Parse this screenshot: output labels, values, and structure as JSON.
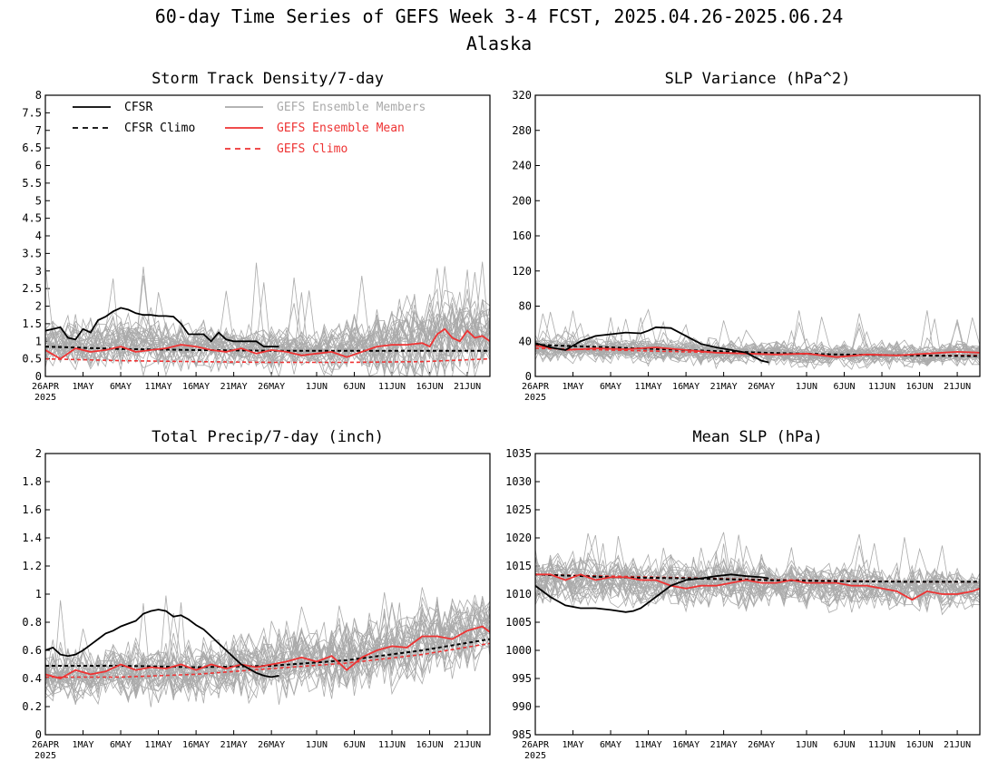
{
  "title_line1": "60-day Time Series of GEFS Week 3-4 FCST, 2025.04.26-2025.06.24",
  "title_line2": "Alaska",
  "x_tick_labels": [
    "26APR",
    "1MAY",
    "6MAY",
    "11MAY",
    "16MAY",
    "21MAY",
    "26MAY",
    "1JUN",
    "6JUN",
    "11JUN",
    "16JUN",
    "21JUN"
  ],
  "x_year_label": "2025",
  "legend": {
    "cfsr": "CFSR",
    "cfsr_climo": "CFSR Climo",
    "members": "GEFS Ensemble Members",
    "ens_mean": "GEFS Ensemble Mean",
    "gefs_climo": "GEFS Climo"
  },
  "colors": {
    "cfsr": "#000000",
    "members": "#aaaaaa",
    "ens_mean": "#ee3333",
    "gefs_climo": "#ee3333"
  },
  "chart_data": [
    {
      "type": "line",
      "title": "Storm Track Density/7-day",
      "ylim": [
        0,
        8
      ],
      "yticks": [
        "0",
        "0.5",
        "1",
        "1.5",
        "2",
        "2.5",
        "3",
        "3.5",
        "4",
        "4.5",
        "5",
        "5.5",
        "6",
        "6.5",
        "7",
        "7.5",
        "8"
      ],
      "x_days": 60,
      "show_legend": true,
      "series": [
        {
          "name": "CFSR",
          "x": [
            0,
            1,
            2,
            3,
            4,
            5,
            6,
            7,
            8,
            9,
            10,
            11,
            12,
            13,
            14,
            15,
            16,
            17,
            18,
            19,
            20,
            21,
            22,
            23,
            24,
            25,
            26,
            27,
            28,
            29,
            30,
            31
          ],
          "values": [
            1.3,
            1.35,
            1.4,
            1.1,
            1.05,
            1.35,
            1.25,
            1.6,
            1.7,
            1.85,
            1.95,
            1.9,
            1.8,
            1.75,
            1.75,
            1.72,
            1.72,
            1.7,
            1.5,
            1.2,
            1.2,
            1.2,
            1.0,
            1.25,
            1.05,
            1.0,
            1.0,
            1.0,
            1.0,
            0.85,
            0.85,
            0.85
          ]
        },
        {
          "name": "CFSR Climo",
          "x": [
            0,
            10,
            20,
            30,
            40,
            50,
            59
          ],
          "values": [
            0.85,
            0.78,
            0.75,
            0.73,
            0.73,
            0.73,
            0.73
          ]
        },
        {
          "name": "GEFS Ensemble Mean",
          "x": [
            0,
            2,
            4,
            6,
            8,
            10,
            12,
            14,
            16,
            18,
            20,
            22,
            24,
            26,
            28,
            30,
            32,
            34,
            36,
            38,
            40,
            42,
            44,
            46,
            48,
            50,
            51,
            52,
            53,
            54,
            55,
            56,
            57,
            58,
            59
          ],
          "values": [
            0.75,
            0.5,
            0.8,
            0.7,
            0.75,
            0.85,
            0.7,
            0.75,
            0.8,
            0.9,
            0.85,
            0.75,
            0.7,
            0.8,
            0.65,
            0.75,
            0.7,
            0.6,
            0.65,
            0.7,
            0.55,
            0.7,
            0.85,
            0.9,
            0.9,
            0.95,
            0.85,
            1.2,
            1.35,
            1.1,
            1.0,
            1.3,
            1.1,
            1.15,
            1.0
          ]
        },
        {
          "name": "GEFS Climo",
          "x": [
            0,
            10,
            20,
            30,
            40,
            50,
            59
          ],
          "values": [
            0.5,
            0.45,
            0.42,
            0.4,
            0.4,
            0.42,
            0.5
          ]
        }
      ],
      "members_band": {
        "x": [
          0,
          5,
          10,
          15,
          20,
          25,
          30,
          35,
          40,
          45,
          50,
          55,
          59
        ],
        "center": [
          0.9,
          0.85,
          0.95,
          0.9,
          0.85,
          0.8,
          0.75,
          0.75,
          0.8,
          0.9,
          1.1,
          1.2,
          1.15
        ],
        "spread": [
          0.45,
          0.45,
          0.5,
          0.45,
          0.45,
          0.4,
          0.4,
          0.4,
          0.5,
          0.65,
          0.9,
          0.8,
          0.7
        ],
        "lo": 0,
        "hi": 4.3,
        "count": 30,
        "seed": 11
      }
    },
    {
      "type": "line",
      "title": "SLP Variance (hPa^2)",
      "ylim": [
        0,
        320
      ],
      "yticks": [
        "0",
        "40",
        "80",
        "120",
        "160",
        "200",
        "240",
        "280",
        "320"
      ],
      "x_days": 60,
      "show_legend": false,
      "series": [
        {
          "name": "CFSR",
          "x": [
            0,
            2,
            4,
            6,
            8,
            10,
            12,
            14,
            15,
            16,
            18,
            20,
            22,
            24,
            26,
            28,
            30,
            31
          ],
          "values": [
            38,
            33,
            30,
            40,
            46,
            48,
            50,
            49,
            52,
            56,
            55,
            46,
            37,
            33,
            30,
            27,
            18,
            16
          ]
        },
        {
          "name": "CFSR Climo",
          "x": [
            0,
            10,
            20,
            30,
            40,
            50,
            59
          ],
          "values": [
            36,
            33,
            30,
            27,
            25,
            24,
            23
          ]
        },
        {
          "name": "GEFS Ensemble Mean",
          "x": [
            0,
            4,
            8,
            12,
            16,
            20,
            24,
            28,
            32,
            36,
            40,
            44,
            48,
            52,
            56,
            59
          ],
          "values": [
            35,
            30,
            32,
            31,
            33,
            30,
            27,
            26,
            25,
            26,
            22,
            25,
            24,
            26,
            28,
            27
          ]
        },
        {
          "name": "GEFS Climo",
          "x": [
            0,
            10,
            20,
            30,
            40,
            50,
            59
          ],
          "values": [
            32,
            30,
            28,
            26,
            25,
            24,
            24
          ]
        }
      ],
      "members_band": {
        "x": [
          0,
          10,
          20,
          30,
          40,
          50,
          59
        ],
        "center": [
          33,
          31,
          29,
          27,
          25,
          25,
          26
        ],
        "spread": [
          10,
          10,
          10,
          9,
          9,
          9,
          9
        ],
        "lo": 5,
        "hi": 88,
        "count": 30,
        "seed": 23
      }
    },
    {
      "type": "line",
      "title": "Total Precip/7-day (inch)",
      "ylim": [
        0,
        2
      ],
      "yticks": [
        "0",
        "0.2",
        "0.4",
        "0.6",
        "0.8",
        "1",
        "1.2",
        "1.4",
        "1.6",
        "1.8",
        "2"
      ],
      "x_days": 60,
      "show_legend": false,
      "series": [
        {
          "name": "CFSR",
          "x": [
            0,
            1,
            2,
            3,
            4,
            5,
            6,
            7,
            8,
            9,
            10,
            11,
            12,
            13,
            14,
            15,
            16,
            17,
            18,
            19,
            20,
            21,
            22,
            23,
            24,
            25,
            26,
            27,
            28,
            29,
            30,
            31
          ],
          "values": [
            0.6,
            0.62,
            0.57,
            0.56,
            0.57,
            0.6,
            0.64,
            0.68,
            0.72,
            0.74,
            0.77,
            0.79,
            0.81,
            0.86,
            0.88,
            0.89,
            0.88,
            0.84,
            0.85,
            0.82,
            0.78,
            0.75,
            0.7,
            0.65,
            0.6,
            0.55,
            0.5,
            0.47,
            0.44,
            0.42,
            0.41,
            0.42
          ]
        },
        {
          "name": "CFSR Climo",
          "x": [
            0,
            10,
            20,
            30,
            40,
            50,
            59
          ],
          "values": [
            0.49,
            0.49,
            0.48,
            0.49,
            0.53,
            0.6,
            0.68
          ]
        },
        {
          "name": "GEFS Ensemble Mean",
          "x": [
            0,
            2,
            4,
            6,
            8,
            10,
            12,
            14,
            16,
            18,
            20,
            22,
            24,
            26,
            28,
            30,
            32,
            34,
            36,
            38,
            40,
            42,
            44,
            46,
            48,
            50,
            52,
            54,
            56,
            58,
            59
          ],
          "values": [
            0.43,
            0.4,
            0.46,
            0.43,
            0.45,
            0.5,
            0.46,
            0.48,
            0.47,
            0.5,
            0.46,
            0.5,
            0.47,
            0.5,
            0.48,
            0.5,
            0.52,
            0.55,
            0.52,
            0.56,
            0.46,
            0.55,
            0.6,
            0.63,
            0.62,
            0.7,
            0.7,
            0.68,
            0.74,
            0.77,
            0.73
          ]
        },
        {
          "name": "GEFS Climo",
          "x": [
            0,
            10,
            20,
            30,
            40,
            50,
            59
          ],
          "values": [
            0.41,
            0.41,
            0.43,
            0.47,
            0.51,
            0.57,
            0.65
          ]
        }
      ],
      "members_band": {
        "x": [
          0,
          10,
          20,
          30,
          40,
          50,
          59
        ],
        "center": [
          0.42,
          0.44,
          0.46,
          0.5,
          0.55,
          0.65,
          0.75
        ],
        "spread": [
          0.12,
          0.13,
          0.14,
          0.15,
          0.17,
          0.18,
          0.18
        ],
        "lo": 0.1,
        "hi": 1.15,
        "count": 30,
        "seed": 37
      }
    },
    {
      "type": "line",
      "title": "Mean SLP (hPa)",
      "ylim": [
        985,
        1035
      ],
      "yticks": [
        "985",
        "990",
        "995",
        "1000",
        "1005",
        "1010",
        "1015",
        "1020",
        "1025",
        "1030",
        "1035"
      ],
      "x_days": 60,
      "show_legend": false,
      "series": [
        {
          "name": "CFSR",
          "x": [
            0,
            2,
            4,
            6,
            8,
            10,
            12,
            13,
            14,
            16,
            18,
            20,
            22,
            24,
            26,
            28,
            30,
            31
          ],
          "values": [
            1011.5,
            1009.5,
            1008,
            1007.5,
            1007.5,
            1007.2,
            1006.8,
            1007,
            1007.5,
            1009.5,
            1011.5,
            1012.5,
            1012.8,
            1013.2,
            1013.5,
            1013.2,
            1013,
            1012.8
          ]
        },
        {
          "name": "CFSR Climo",
          "x": [
            0,
            10,
            20,
            30,
            40,
            50,
            59
          ],
          "values": [
            1013.5,
            1013,
            1012.8,
            1012.5,
            1012.3,
            1012.2,
            1012.2
          ]
        },
        {
          "name": "GEFS Ensemble Mean",
          "x": [
            0,
            2,
            4,
            6,
            8,
            10,
            12,
            14,
            16,
            18,
            20,
            22,
            24,
            26,
            28,
            30,
            32,
            34,
            36,
            38,
            40,
            42,
            44,
            46,
            48,
            50,
            52,
            54,
            56,
            58,
            59
          ],
          "values": [
            1013.5,
            1013.5,
            1012.5,
            1013.5,
            1012.5,
            1013,
            1013,
            1012.5,
            1012.5,
            1011.5,
            1011,
            1011.5,
            1011.5,
            1012,
            1012.5,
            1012,
            1012,
            1012.5,
            1012,
            1012,
            1012,
            1011.5,
            1011.5,
            1011,
            1010.5,
            1009,
            1010.5,
            1010,
            1010,
            1010.5,
            1011
          ]
        },
        {
          "name": "GEFS Climo",
          "x": [
            0,
            10,
            20,
            30,
            40,
            50,
            59
          ],
          "values": [
            1013.5,
            1013.2,
            1012.9,
            1012.6,
            1012.4,
            1012.2,
            1012.2
          ]
        }
      ],
      "members_band": {
        "x": [
          0,
          10,
          20,
          30,
          40,
          50,
          59
        ],
        "center": [
          1012.5,
          1012.5,
          1012,
          1012,
          1011.5,
          1011,
          1011
        ],
        "spread": [
          3,
          3,
          3,
          2.8,
          2.5,
          2.5,
          2.5
        ],
        "lo": 1000,
        "hi": 1023.5,
        "count": 30,
        "seed": 53
      }
    }
  ]
}
